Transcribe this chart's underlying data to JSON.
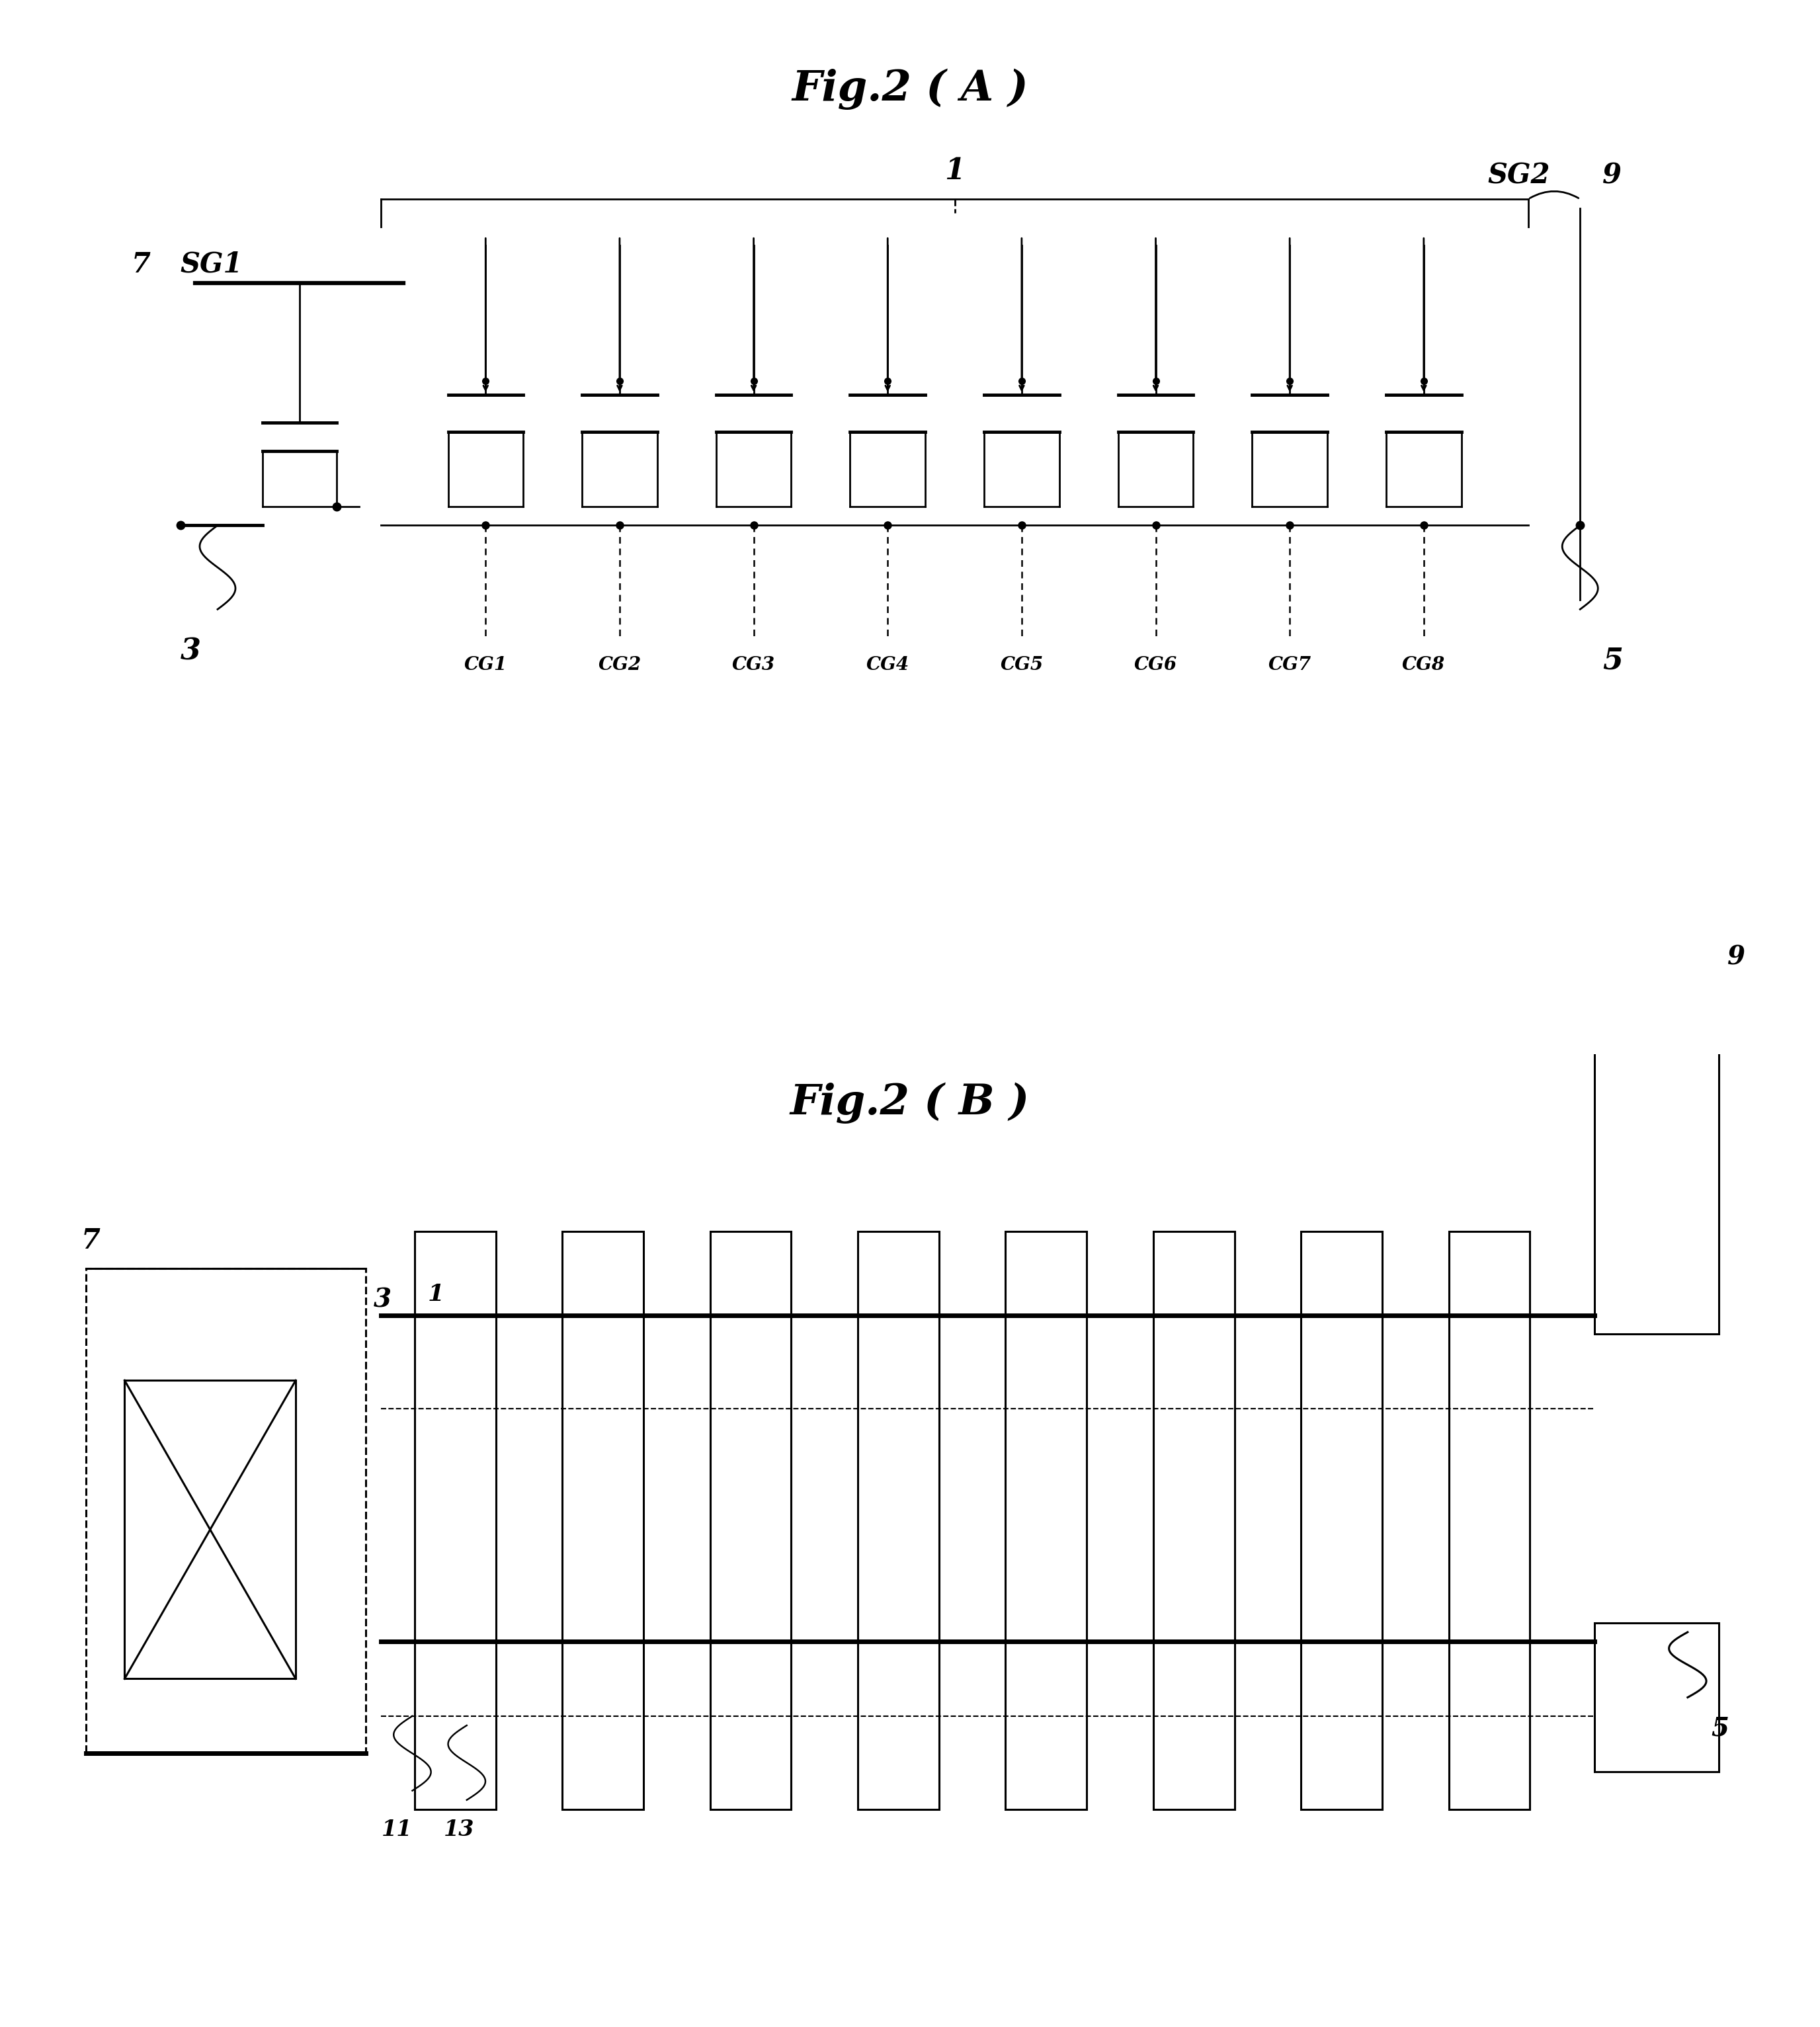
{
  "title_a": "Fig.2 ( A )",
  "title_b": "Fig.2 ( B )",
  "background_color": "#ffffff",
  "line_color": "#000000",
  "cg_labels": [
    "CG1",
    "CG2",
    "CG3",
    "CG4",
    "CG5",
    "CG6",
    "CG7",
    "CG8"
  ],
  "num_cells": 8,
  "fig_width": 27.52,
  "fig_height": 30.65
}
